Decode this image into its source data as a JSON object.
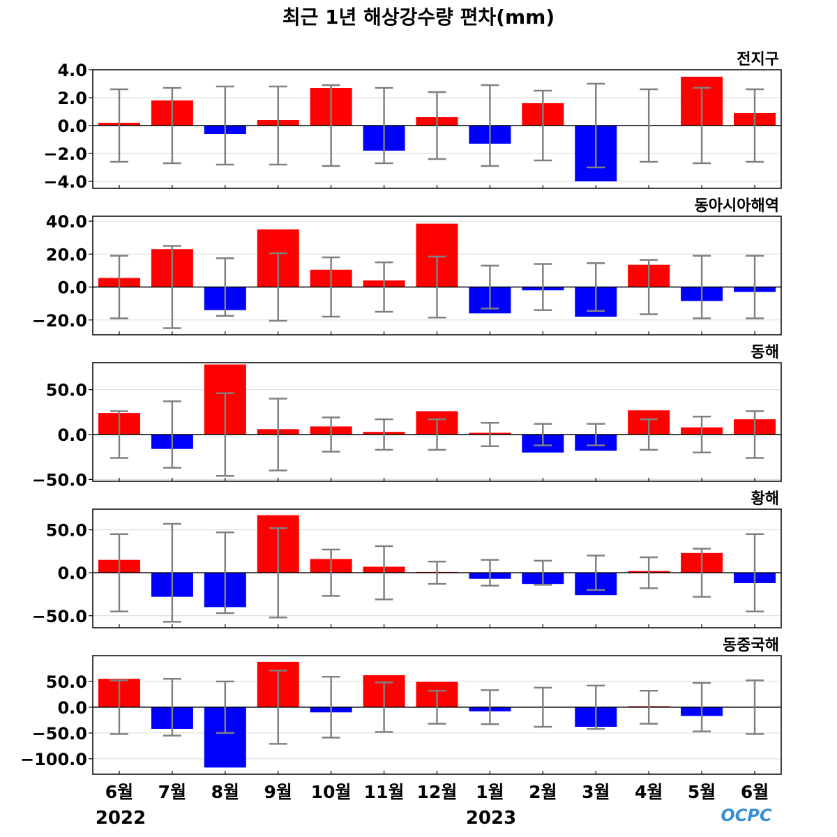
{
  "title": "최근 1년 해상강수량 편차(mm)",
  "year_labels": [
    "2022",
    "2023"
  ],
  "logo_text": "OCPC",
  "colors": {
    "positive": "#ff0000",
    "negative": "#0000ff",
    "errorbar": "#808080",
    "grid": "#d9d9d9"
  },
  "chart_data": [
    {
      "type": "bar",
      "title": "전지구",
      "categories": [
        "6월",
        "7월",
        "8월",
        "9월",
        "10월",
        "11월",
        "12월",
        "1월",
        "2월",
        "3월",
        "4월",
        "5월",
        "6월"
      ],
      "values": [
        0.2,
        1.8,
        -0.6,
        0.4,
        2.7,
        -1.8,
        0.6,
        -1.3,
        1.6,
        -4.0,
        0.0,
        3.5,
        0.9
      ],
      "error": [
        2.6,
        2.7,
        2.8,
        2.8,
        2.9,
        2.7,
        2.4,
        2.9,
        2.5,
        3.0,
        2.6,
        2.7,
        2.6
      ],
      "ylim": [
        -4.5,
        4.0
      ],
      "yticks": [
        4.0,
        2.0,
        0.0,
        -2.0,
        -4.0
      ],
      "yticklabels": [
        "4.0",
        "2.0",
        "0.0",
        "−2.0",
        "−4.0"
      ],
      "grid": true
    },
    {
      "type": "bar",
      "title": "동아시아해역",
      "categories": [
        "6월",
        "7월",
        "8월",
        "9월",
        "10월",
        "11월",
        "12월",
        "1월",
        "2월",
        "3월",
        "4월",
        "5월",
        "6월"
      ],
      "values": [
        5.5,
        23.0,
        -14.0,
        35.0,
        10.5,
        4.0,
        38.5,
        -16.0,
        -2.0,
        -18.0,
        13.5,
        -8.5,
        -3.0
      ],
      "error": [
        19.0,
        25.0,
        17.5,
        20.5,
        18.0,
        15.0,
        18.5,
        13.0,
        14.0,
        14.5,
        16.5,
        19.0,
        19.0
      ],
      "ylim": [
        -29,
        43
      ],
      "yticks": [
        40.0,
        20.0,
        0.0,
        -20.0
      ],
      "yticklabels": [
        "40.0",
        "20.0",
        "0.0",
        "−20.0"
      ],
      "grid": true
    },
    {
      "type": "bar",
      "title": "동해",
      "categories": [
        "6월",
        "7월",
        "8월",
        "9월",
        "10월",
        "11월",
        "12월",
        "1월",
        "2월",
        "3월",
        "4월",
        "5월",
        "6월"
      ],
      "values": [
        24.0,
        -16.0,
        78.0,
        6.0,
        9.0,
        3.0,
        26.0,
        2.0,
        -20.0,
        -18.0,
        27.0,
        8.0,
        17.0
      ],
      "error": [
        26.0,
        37.0,
        46.0,
        40.0,
        19.0,
        17.0,
        17.0,
        13.0,
        12.0,
        12.0,
        17.0,
        20.0,
        26.0
      ],
      "ylim": [
        -52,
        80
      ],
      "yticks": [
        50.0,
        0.0,
        -50.0
      ],
      "yticklabels": [
        "50.0",
        "0.0",
        "−50.0"
      ],
      "grid": true
    },
    {
      "type": "bar",
      "title": "황해",
      "categories": [
        "6월",
        "7월",
        "8월",
        "9월",
        "10월",
        "11월",
        "12월",
        "1월",
        "2월",
        "3월",
        "4월",
        "5월",
        "6월"
      ],
      "values": [
        15.0,
        -28.0,
        -40.0,
        67.0,
        16.0,
        7.0,
        1.0,
        -7.0,
        -13.0,
        -26.0,
        2.0,
        23.0,
        -12.0
      ],
      "error": [
        45.0,
        57.0,
        47.0,
        52.0,
        27.0,
        31.0,
        13.0,
        15.0,
        14.0,
        20.0,
        18.0,
        28.0,
        45.0
      ],
      "ylim": [
        -64,
        74
      ],
      "yticks": [
        50.0,
        0.0,
        -50.0
      ],
      "yticklabels": [
        "50.0",
        "0.0",
        "−50.0"
      ],
      "grid": true
    },
    {
      "type": "bar",
      "title": "동중국해",
      "categories": [
        "6월",
        "7월",
        "8월",
        "9월",
        "10월",
        "11월",
        "12월",
        "1월",
        "2월",
        "3월",
        "4월",
        "5월",
        "6월"
      ],
      "values": [
        55.0,
        -42.0,
        -117.0,
        88.0,
        -10.0,
        62.0,
        49.0,
        -8.0,
        0.0,
        -38.0,
        2.0,
        -17.0,
        0.0
      ],
      "error": [
        52.0,
        55.0,
        50.0,
        71.0,
        59.0,
        48.0,
        32.0,
        33.0,
        38.0,
        42.0,
        32.0,
        47.0,
        52.0
      ],
      "ylim": [
        -130,
        100
      ],
      "yticks": [
        50.0,
        0.0,
        -50.0,
        -100.0
      ],
      "yticklabels": [
        "50.0",
        "0.0",
        "−50.0",
        "−100.0"
      ],
      "grid": true
    }
  ]
}
